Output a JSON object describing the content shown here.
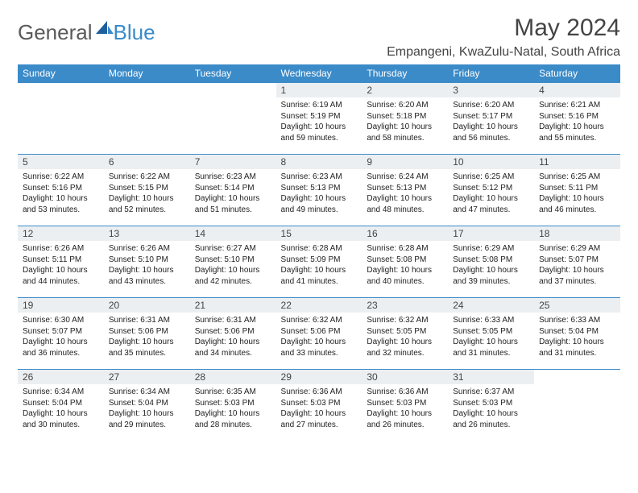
{
  "brand": {
    "part1": "General",
    "part2": "Blue"
  },
  "title": "May 2024",
  "location": "Empangeni, KwaZulu-Natal, South Africa",
  "colors": {
    "header_bg": "#3b8bc9",
    "header_text": "#ffffff",
    "daynum_bg": "#eceff1",
    "border": "#3b8bc9",
    "logo_gray": "#5a5a5a",
    "logo_blue": "#3b8bc9"
  },
  "weekdays": [
    "Sunday",
    "Monday",
    "Tuesday",
    "Wednesday",
    "Thursday",
    "Friday",
    "Saturday"
  ],
  "weeks": [
    [
      {
        "empty": true
      },
      {
        "empty": true
      },
      {
        "empty": true
      },
      {
        "n": "1",
        "sr": "6:19 AM",
        "ss": "5:19 PM",
        "dl": "10 hours and 59 minutes."
      },
      {
        "n": "2",
        "sr": "6:20 AM",
        "ss": "5:18 PM",
        "dl": "10 hours and 58 minutes."
      },
      {
        "n": "3",
        "sr": "6:20 AM",
        "ss": "5:17 PM",
        "dl": "10 hours and 56 minutes."
      },
      {
        "n": "4",
        "sr": "6:21 AM",
        "ss": "5:16 PM",
        "dl": "10 hours and 55 minutes."
      }
    ],
    [
      {
        "n": "5",
        "sr": "6:22 AM",
        "ss": "5:16 PM",
        "dl": "10 hours and 53 minutes."
      },
      {
        "n": "6",
        "sr": "6:22 AM",
        "ss": "5:15 PM",
        "dl": "10 hours and 52 minutes."
      },
      {
        "n": "7",
        "sr": "6:23 AM",
        "ss": "5:14 PM",
        "dl": "10 hours and 51 minutes."
      },
      {
        "n": "8",
        "sr": "6:23 AM",
        "ss": "5:13 PM",
        "dl": "10 hours and 49 minutes."
      },
      {
        "n": "9",
        "sr": "6:24 AM",
        "ss": "5:13 PM",
        "dl": "10 hours and 48 minutes."
      },
      {
        "n": "10",
        "sr": "6:25 AM",
        "ss": "5:12 PM",
        "dl": "10 hours and 47 minutes."
      },
      {
        "n": "11",
        "sr": "6:25 AM",
        "ss": "5:11 PM",
        "dl": "10 hours and 46 minutes."
      }
    ],
    [
      {
        "n": "12",
        "sr": "6:26 AM",
        "ss": "5:11 PM",
        "dl": "10 hours and 44 minutes."
      },
      {
        "n": "13",
        "sr": "6:26 AM",
        "ss": "5:10 PM",
        "dl": "10 hours and 43 minutes."
      },
      {
        "n": "14",
        "sr": "6:27 AM",
        "ss": "5:10 PM",
        "dl": "10 hours and 42 minutes."
      },
      {
        "n": "15",
        "sr": "6:28 AM",
        "ss": "5:09 PM",
        "dl": "10 hours and 41 minutes."
      },
      {
        "n": "16",
        "sr": "6:28 AM",
        "ss": "5:08 PM",
        "dl": "10 hours and 40 minutes."
      },
      {
        "n": "17",
        "sr": "6:29 AM",
        "ss": "5:08 PM",
        "dl": "10 hours and 39 minutes."
      },
      {
        "n": "18",
        "sr": "6:29 AM",
        "ss": "5:07 PM",
        "dl": "10 hours and 37 minutes."
      }
    ],
    [
      {
        "n": "19",
        "sr": "6:30 AM",
        "ss": "5:07 PM",
        "dl": "10 hours and 36 minutes."
      },
      {
        "n": "20",
        "sr": "6:31 AM",
        "ss": "5:06 PM",
        "dl": "10 hours and 35 minutes."
      },
      {
        "n": "21",
        "sr": "6:31 AM",
        "ss": "5:06 PM",
        "dl": "10 hours and 34 minutes."
      },
      {
        "n": "22",
        "sr": "6:32 AM",
        "ss": "5:06 PM",
        "dl": "10 hours and 33 minutes."
      },
      {
        "n": "23",
        "sr": "6:32 AM",
        "ss": "5:05 PM",
        "dl": "10 hours and 32 minutes."
      },
      {
        "n": "24",
        "sr": "6:33 AM",
        "ss": "5:05 PM",
        "dl": "10 hours and 31 minutes."
      },
      {
        "n": "25",
        "sr": "6:33 AM",
        "ss": "5:04 PM",
        "dl": "10 hours and 31 minutes."
      }
    ],
    [
      {
        "n": "26",
        "sr": "6:34 AM",
        "ss": "5:04 PM",
        "dl": "10 hours and 30 minutes."
      },
      {
        "n": "27",
        "sr": "6:34 AM",
        "ss": "5:04 PM",
        "dl": "10 hours and 29 minutes."
      },
      {
        "n": "28",
        "sr": "6:35 AM",
        "ss": "5:03 PM",
        "dl": "10 hours and 28 minutes."
      },
      {
        "n": "29",
        "sr": "6:36 AM",
        "ss": "5:03 PM",
        "dl": "10 hours and 27 minutes."
      },
      {
        "n": "30",
        "sr": "6:36 AM",
        "ss": "5:03 PM",
        "dl": "10 hours and 26 minutes."
      },
      {
        "n": "31",
        "sr": "6:37 AM",
        "ss": "5:03 PM",
        "dl": "10 hours and 26 minutes."
      },
      {
        "empty": true
      }
    ]
  ],
  "labels": {
    "sunrise": "Sunrise:",
    "sunset": "Sunset:",
    "daylight": "Daylight:"
  }
}
